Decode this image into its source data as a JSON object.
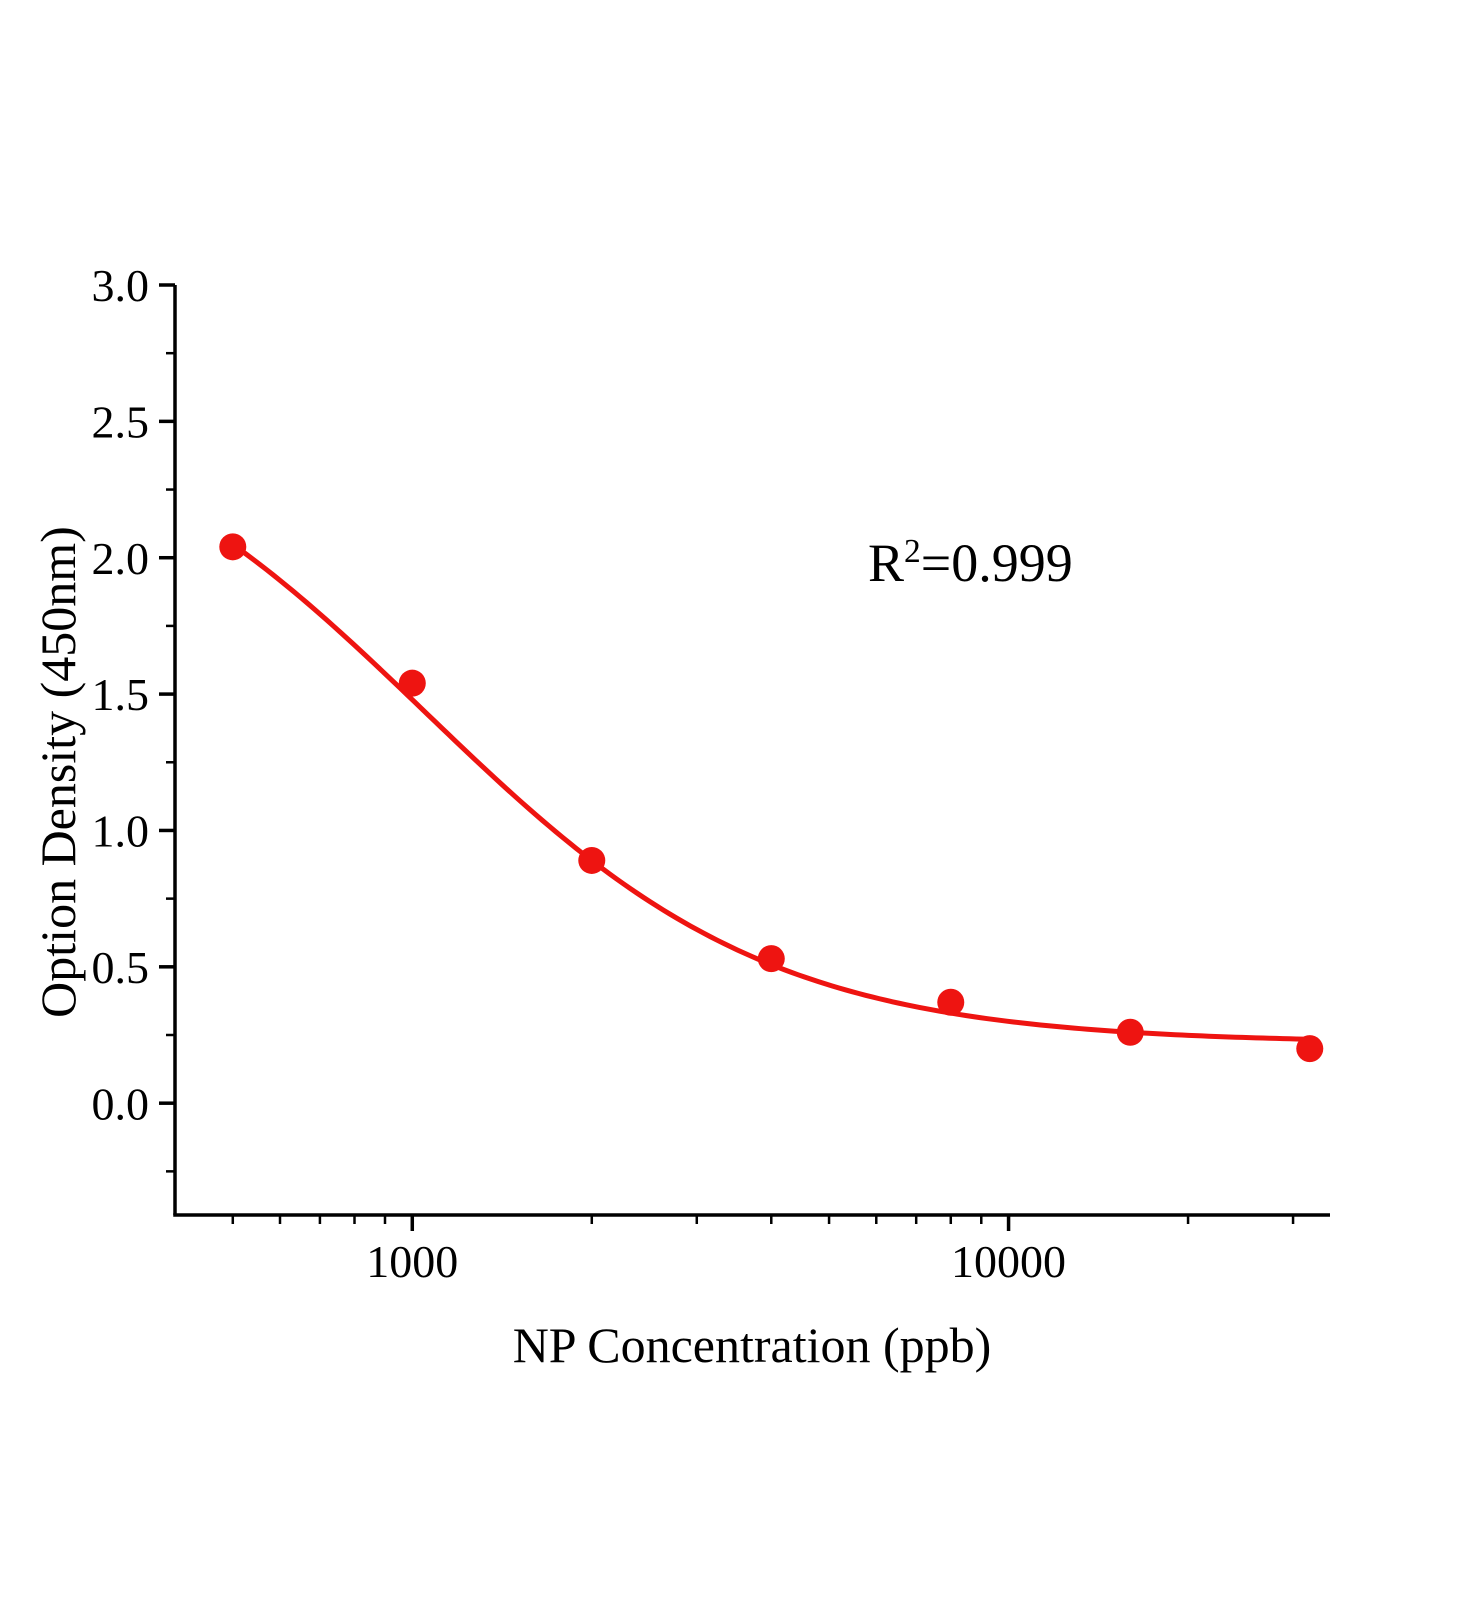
{
  "chart_data": {
    "type": "scatter",
    "title": "",
    "xlabel": "NP Concentration (ppb)",
    "ylabel": "Option Density (450nm)",
    "annotation": {
      "base": "R",
      "sup": "2",
      "rest": "=0.999"
    },
    "x": [
      500,
      1000,
      2000,
      4000,
      8000,
      16000,
      32000
    ],
    "y": [
      2.04,
      1.54,
      0.89,
      0.53,
      0.37,
      0.26,
      0.2
    ],
    "x_scale": "log",
    "xlim": [
      400,
      34600
    ],
    "ylim": [
      -0.41,
      3.0
    ],
    "y_ticks": [
      0.0,
      0.5,
      1.0,
      1.5,
      2.0,
      2.5,
      3.0
    ],
    "y_minor_step": 0.25,
    "x_tick_values": [
      1000,
      10000
    ],
    "x_tick_labels": [
      "1000",
      "10000"
    ],
    "fit": {
      "type": "4pl",
      "A": 2.65,
      "B": 1.5,
      "C": 1050,
      "D": 0.22
    },
    "grid": false,
    "legend": null,
    "point_color": "#ee1411",
    "line_color": "#ee1411",
    "axis_color": "#000000"
  }
}
